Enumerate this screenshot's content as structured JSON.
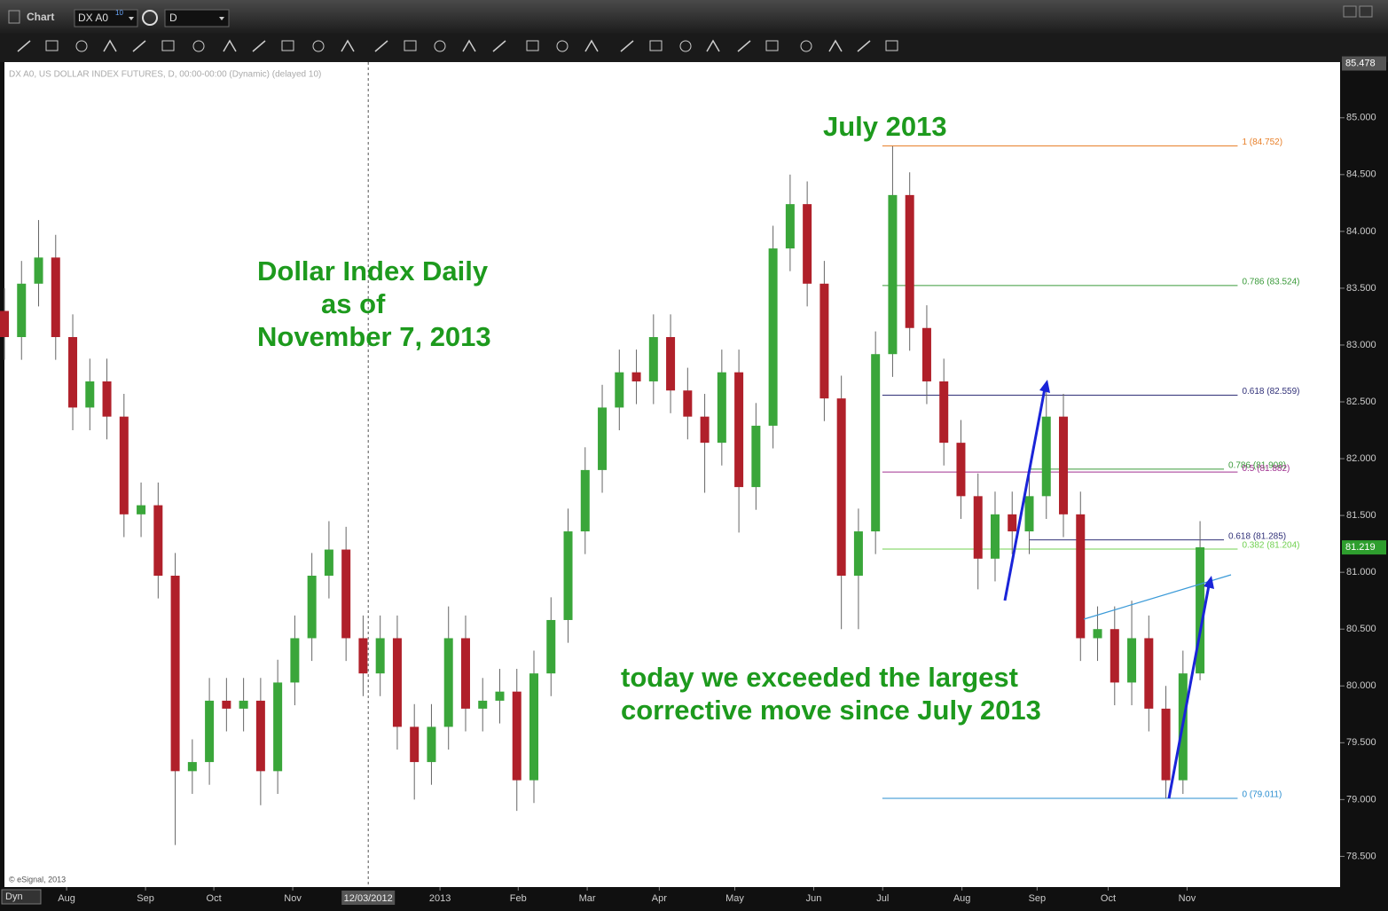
{
  "ui": {
    "window_title": "Chart",
    "symbol": "DX A0",
    "symbol_badge": "10",
    "interval": "D",
    "info_line": "DX A0, US DOLLAR INDEX FUTURES, D, 00:00-00:00 (Dynamic) (delayed 10)",
    "copyright": "© eSignal, 2013",
    "mode": "Dyn"
  },
  "chart_data": {
    "type": "candlestick",
    "annotations": [
      "July 2013",
      "Dollar Index Daily",
      "as of",
      "November 7, 2013",
      "today we exceeded the largest",
      "corrective move since July 2013"
    ],
    "up_color": "#3aa63a",
    "down_color": "#b0202a",
    "x": [
      0,
      5,
      10,
      15,
      20,
      25,
      30,
      35,
      40,
      45,
      50,
      55,
      60,
      65,
      70,
      75,
      80,
      85,
      90,
      95,
      100,
      105,
      110,
      115,
      120,
      125,
      130,
      135,
      140,
      145,
      150,
      155,
      160,
      165,
      170,
      175,
      180,
      185,
      190,
      195,
      200,
      205,
      210,
      215,
      220,
      225,
      230,
      235,
      240,
      245,
      250,
      255,
      260,
      265,
      270,
      275,
      280,
      285,
      290,
      295,
      300,
      305,
      310,
      315,
      320,
      325,
      330,
      335,
      340,
      345,
      350
    ],
    "open": [
      83.3,
      83.07,
      83.54,
      83.77,
      83.07,
      82.45,
      82.68,
      82.37,
      81.51,
      81.59,
      80.97,
      79.25,
      79.33,
      79.87,
      79.8,
      79.87,
      79.25,
      80.03,
      80.42,
      80.97,
      81.2,
      80.42,
      80.11,
      80.42,
      79.64,
      79.33,
      79.64,
      80.42,
      79.8,
      79.87,
      79.95,
      79.17,
      80.11,
      80.58,
      81.36,
      81.9,
      82.45,
      82.76,
      82.68,
      83.07,
      82.6,
      82.37,
      82.14,
      82.76,
      81.75,
      82.29,
      83.85,
      84.24,
      83.54,
      82.53,
      80.97,
      81.36,
      82.92,
      84.32,
      83.15,
      82.68,
      82.14,
      81.67,
      81.12,
      81.51,
      81.36,
      81.67,
      82.37,
      81.51,
      80.42,
      80.5,
      80.03,
      80.42,
      79.8,
      79.17,
      80.11
    ],
    "high": [
      83.5,
      83.74,
      84.1,
      83.97,
      83.27,
      82.88,
      82.88,
      82.57,
      81.79,
      81.79,
      81.17,
      79.53,
      80.07,
      80.07,
      80.07,
      80.07,
      80.23,
      80.62,
      81.17,
      81.45,
      81.4,
      80.62,
      80.62,
      80.62,
      79.84,
      79.84,
      80.7,
      80.62,
      80.07,
      80.15,
      80.15,
      80.31,
      80.78,
      81.56,
      82.1,
      82.65,
      82.96,
      82.96,
      83.27,
      83.27,
      82.8,
      82.57,
      82.96,
      82.96,
      82.49,
      84.05,
      84.5,
      84.44,
      83.74,
      82.73,
      81.56,
      83.12,
      84.75,
      84.52,
      83.35,
      82.88,
      82.34,
      81.87,
      81.71,
      81.71,
      81.87,
      82.68,
      82.57,
      81.71,
      80.7,
      80.7,
      80.75,
      80.62,
      80.0,
      80.31,
      81.45
    ],
    "low": [
      82.87,
      82.87,
      83.34,
      82.87,
      82.25,
      82.25,
      82.17,
      81.31,
      81.31,
      80.77,
      78.6,
      79.05,
      79.13,
      79.6,
      79.6,
      78.95,
      79.05,
      79.83,
      80.22,
      80.77,
      80.22,
      79.91,
      79.91,
      79.44,
      79.0,
      79.13,
      79.44,
      79.6,
      79.6,
      79.67,
      78.9,
      78.97,
      79.91,
      80.38,
      81.16,
      81.7,
      82.25,
      82.48,
      82.48,
      82.4,
      82.17,
      81.7,
      81.94,
      81.35,
      81.55,
      82.09,
      83.65,
      83.34,
      82.33,
      80.5,
      80.5,
      81.16,
      82.72,
      82.95,
      82.48,
      81.94,
      81.47,
      80.85,
      80.92,
      81.16,
      81.16,
      81.47,
      81.31,
      80.22,
      80.22,
      79.83,
      79.83,
      79.6,
      79.01,
      79.05,
      80.05
    ],
    "close": [
      83.07,
      83.54,
      83.77,
      83.07,
      82.45,
      82.68,
      82.37,
      81.51,
      81.59,
      80.97,
      79.25,
      79.33,
      79.87,
      79.8,
      79.87,
      79.25,
      80.03,
      80.42,
      80.97,
      81.2,
      80.42,
      80.11,
      80.42,
      79.64,
      79.33,
      79.64,
      80.42,
      79.8,
      79.87,
      79.95,
      79.17,
      80.11,
      80.58,
      81.36,
      81.9,
      82.45,
      82.76,
      82.68,
      83.07,
      82.6,
      82.37,
      82.14,
      82.76,
      81.75,
      82.29,
      83.85,
      84.24,
      83.54,
      82.53,
      80.97,
      81.36,
      82.92,
      84.32,
      83.15,
      82.68,
      82.14,
      81.67,
      81.12,
      81.51,
      81.36,
      81.67,
      82.37,
      81.51,
      80.42,
      80.5,
      80.03,
      80.42,
      79.8,
      79.17,
      80.11,
      81.22
    ],
    "xlim": [
      0,
      391
    ],
    "ylim": [
      78.23,
      85.49
    ],
    "xticks": [
      {
        "value": 18.2,
        "label": "Aug"
      },
      {
        "value": 41.3,
        "label": "Sep"
      },
      {
        "value": 61.3,
        "label": "Oct"
      },
      {
        "value": 84.4,
        "label": "Nov"
      },
      {
        "value": 127.5,
        "label": "2013"
      },
      {
        "value": 150.4,
        "label": "Feb"
      },
      {
        "value": 170.6,
        "label": "Mar"
      },
      {
        "value": 191.7,
        "label": "Apr"
      },
      {
        "value": 213.8,
        "label": "May"
      },
      {
        "value": 236.9,
        "label": "Jun"
      },
      {
        "value": 257.1,
        "label": "Jul"
      },
      {
        "value": 280.3,
        "label": "Aug"
      },
      {
        "value": 302.3,
        "label": "Sep"
      },
      {
        "value": 323.1,
        "label": "Oct"
      },
      {
        "value": 346.2,
        "label": "Nov"
      }
    ],
    "yticks": [
      {
        "value": 78.5,
        "label": "78.500"
      },
      {
        "value": 79,
        "label": "79.000"
      },
      {
        "value": 79.5,
        "label": "79.500"
      },
      {
        "value": 80,
        "label": "80.000"
      },
      {
        "value": 80.5,
        "label": "80.500"
      },
      {
        "value": 81,
        "label": "81.000"
      },
      {
        "value": 81.5,
        "label": "81.500"
      },
      {
        "value": 82,
        "label": "82.000"
      },
      {
        "value": 82.5,
        "label": "82.500"
      },
      {
        "value": 83,
        "label": "83.000"
      },
      {
        "value": 83.5,
        "label": "83.500"
      },
      {
        "value": 84,
        "label": "84.000"
      },
      {
        "value": 84.5,
        "label": "84.500"
      },
      {
        "value": 85,
        "label": "85.000"
      }
    ],
    "crosshair": {
      "value": 106.5,
      "label": "12/03/2012"
    },
    "price_markers": [
      {
        "value": 85.478,
        "label": "85.478",
        "color": "#555555"
      },
      {
        "value": 81.219,
        "label": "81.219",
        "color": "#2e9e2e"
      }
    ],
    "fib_levels": [
      {
        "label": "1 (84.752)",
        "value": 84.752,
        "color": "#e8802a",
        "x": [
          257,
          361
        ]
      },
      {
        "label": "0.786 (83.524)",
        "value": 83.524,
        "color": "#3a9a3a",
        "x": [
          257,
          361
        ]
      },
      {
        "label": "0.618 (82.559)",
        "value": 82.559,
        "color": "#303078",
        "x": [
          257,
          361
        ]
      },
      {
        "label": "0.786 (81.908)",
        "value": 81.908,
        "color": "#3a9a3a",
        "x": [
          300,
          357
        ]
      },
      {
        "label": "0.5 (81.882)",
        "value": 81.882,
        "color": "#a03090",
        "x": [
          257,
          361
        ]
      },
      {
        "label": "0.618 (81.285)",
        "value": 81.285,
        "color": "#303078",
        "x": [
          300,
          357
        ]
      },
      {
        "label": "0.382 (81.204)",
        "value": 81.204,
        "color": "#70d050",
        "x": [
          257,
          361
        ]
      },
      {
        "label": "0 (79.011)",
        "value": 79.011,
        "color": "#2a8ed0",
        "x": [
          257,
          361
        ]
      }
    ]
  }
}
